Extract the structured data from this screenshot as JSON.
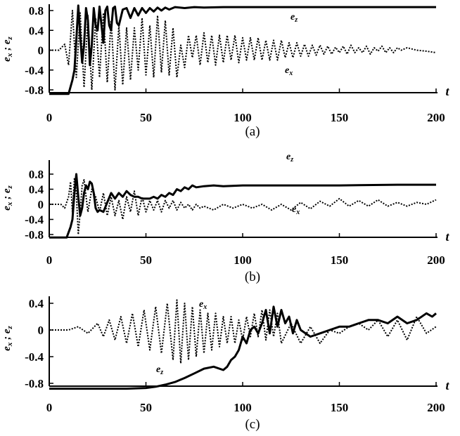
{
  "colors": {
    "ink": "#000000",
    "background": "#ffffff"
  },
  "chart_data": [
    {
      "type": "line",
      "caption": "(a)",
      "xlabel": "t",
      "ylabel": "e_x ; e_z",
      "xlim": [
        0,
        200
      ],
      "ylim": [
        -0.9,
        0.9
      ],
      "xticks": [
        "0",
        "50",
        "100",
        "150",
        "200"
      ],
      "yticks": [
        "0.8",
        "0.4",
        "0",
        "-0.4",
        "-0.8"
      ],
      "series": [
        {
          "name": "e_z",
          "style": "solid",
          "label": {
            "main": "e",
            "sub": "z"
          },
          "x": [
            0,
            10,
            12,
            13,
            14,
            15,
            16,
            17,
            18,
            19,
            20,
            21,
            22,
            23,
            24,
            25,
            26,
            27,
            28,
            29,
            30,
            31,
            32,
            33,
            34,
            35,
            36,
            38,
            40,
            42,
            44,
            46,
            48,
            50,
            52,
            54,
            56,
            58,
            60,
            62,
            65,
            70,
            75,
            80,
            90,
            100,
            120,
            150,
            200
          ],
          "y": [
            -0.88,
            -0.88,
            -0.6,
            -0.4,
            0.2,
            0.9,
            0.3,
            -0.25,
            0.1,
            0.85,
            0.6,
            -0.3,
            0.1,
            0.85,
            0.5,
            0.4,
            0.88,
            0.5,
            0.15,
            0.8,
            0.88,
            0.5,
            0.4,
            0.85,
            0.88,
            0.55,
            0.5,
            0.82,
            0.85,
            0.65,
            0.85,
            0.7,
            0.85,
            0.75,
            0.85,
            0.78,
            0.86,
            0.8,
            0.86,
            0.82,
            0.87,
            0.85,
            0.87,
            0.86,
            0.87,
            0.87,
            0.87,
            0.87,
            0.87
          ]
        },
        {
          "name": "e_x",
          "style": "dotted",
          "label": {
            "main": "e",
            "sub": "x"
          },
          "x": [
            0,
            5,
            8,
            10,
            12,
            14,
            16,
            18,
            20,
            22,
            24,
            26,
            28,
            30,
            32,
            34,
            36,
            38,
            40,
            42,
            44,
            46,
            48,
            50,
            52,
            54,
            56,
            58,
            60,
            62,
            64,
            66,
            68,
            70,
            72,
            74,
            76,
            78,
            80,
            82,
            84,
            86,
            88,
            90,
            92,
            94,
            96,
            98,
            100,
            102,
            104,
            106,
            108,
            110,
            112,
            114,
            116,
            118,
            120,
            122,
            124,
            126,
            128,
            130,
            132,
            134,
            136,
            138,
            140,
            142,
            144,
            146,
            148,
            150,
            152,
            154,
            156,
            158,
            160,
            162,
            164,
            166,
            168,
            170,
            172,
            174,
            176,
            178,
            180,
            182,
            185,
            190,
            195,
            200
          ],
          "y": [
            0,
            0,
            0.12,
            -0.3,
            0.8,
            -0.55,
            0.75,
            -0.75,
            0.7,
            -0.8,
            0.65,
            -0.55,
            0.75,
            -0.65,
            0.6,
            -0.8,
            0.5,
            -0.7,
            0.45,
            -0.6,
            0.45,
            -0.4,
            0.65,
            -0.5,
            0.5,
            -0.55,
            0.7,
            -0.45,
            0.6,
            -0.5,
            0.45,
            -0.55,
            0.1,
            -0.35,
            0.3,
            -0.15,
            0.3,
            -0.3,
            0.35,
            -0.25,
            0.3,
            -0.3,
            0.3,
            -0.25,
            0.3,
            -0.2,
            0.3,
            -0.25,
            0.25,
            -0.2,
            0.25,
            -0.2,
            0.25,
            -0.2,
            0.2,
            -0.2,
            0.2,
            -0.2,
            0.2,
            -0.15,
            0.15,
            -0.15,
            0.15,
            -0.12,
            0.12,
            -0.12,
            0.1,
            -0.1,
            0.1,
            -0.08,
            0.08,
            -0.08,
            0.06,
            -0.05,
            0.08,
            -0.08,
            0.1,
            -0.05,
            0.05,
            -0.05,
            0.08,
            -0.08,
            0.05,
            -0.02,
            0.08,
            -0.05,
            0.05,
            -0.05,
            0.05,
            0,
            0.05,
            0,
            -0.02,
            -0.05
          ]
        }
      ]
    },
    {
      "type": "line",
      "caption": "(b)",
      "xlabel": "t",
      "ylabel": "e_x ; e_z",
      "xlim": [
        0,
        200
      ],
      "ylim": [
        -0.9,
        0.9
      ],
      "xticks": [
        "0",
        "50",
        "100",
        "150",
        "200"
      ],
      "yticks": [
        "0.8",
        "0.4",
        "0",
        "-0.4",
        "-0.8"
      ],
      "series": [
        {
          "name": "e_z",
          "style": "solid",
          "label": {
            "main": "e",
            "sub": "z"
          },
          "x": [
            0,
            9,
            11,
            12,
            13,
            14,
            15,
            16,
            17,
            18,
            19,
            20,
            21,
            22,
            23,
            24,
            25,
            26,
            28,
            30,
            32,
            34,
            36,
            38,
            40,
            42,
            44,
            46,
            48,
            50,
            52,
            54,
            56,
            58,
            60,
            62,
            64,
            66,
            68,
            70,
            72,
            74,
            76,
            80,
            85,
            90,
            100,
            120,
            150,
            180,
            200
          ],
          "y": [
            -0.88,
            -0.88,
            -0.6,
            -0.4,
            0.3,
            0.8,
            0.2,
            -0.3,
            -0.1,
            0.3,
            0.5,
            0.4,
            0.6,
            0.55,
            0.3,
            -0.1,
            -0.2,
            -0.15,
            -0.2,
            0.05,
            0.3,
            0.15,
            0.3,
            0.2,
            0.35,
            0.25,
            0.2,
            0.2,
            0.15,
            0.15,
            0.15,
            0.2,
            0.15,
            0.25,
            0.2,
            0.3,
            0.25,
            0.4,
            0.35,
            0.45,
            0.4,
            0.5,
            0.45,
            0.48,
            0.5,
            0.48,
            0.5,
            0.5,
            0.5,
            0.52,
            0.52
          ]
        },
        {
          "name": "e_x",
          "style": "dotted",
          "label": {
            "main": "e",
            "sub": "x"
          },
          "x": [
            0,
            6,
            8,
            10,
            11,
            12,
            13,
            14,
            15,
            16,
            17,
            18,
            20,
            22,
            24,
            26,
            28,
            30,
            32,
            34,
            36,
            38,
            40,
            42,
            44,
            46,
            48,
            50,
            52,
            54,
            56,
            58,
            60,
            62,
            64,
            66,
            68,
            70,
            72,
            74,
            76,
            78,
            80,
            85,
            90,
            95,
            100,
            105,
            110,
            115,
            120,
            125,
            130,
            135,
            140,
            145,
            150,
            155,
            160,
            165,
            170,
            175,
            180,
            185,
            190,
            195,
            200
          ],
          "y": [
            0,
            0,
            -0.1,
            0.2,
            0.6,
            -0.2,
            0.7,
            0.3,
            -0.8,
            -0.2,
            0.5,
            0.65,
            -0.2,
            0.4,
            0.2,
            -0.2,
            0.3,
            -0.3,
            0.2,
            -0.3,
            0.1,
            -0.4,
            0.2,
            -0.2,
            0.35,
            -0.3,
            0.2,
            -0.2,
            0.1,
            -0.15,
            0.1,
            -0.2,
            0.1,
            -0.1,
            0.1,
            -0.15,
            0.05,
            -0.1,
            0,
            -0.15,
            0,
            -0.1,
            -0.05,
            -0.15,
            0,
            -0.1,
            0,
            -0.1,
            0,
            -0.15,
            0,
            -0.15,
            0.05,
            -0.12,
            0.08,
            -0.05,
            0.15,
            -0.05,
            0.1,
            -0.05,
            0.12,
            -0.05,
            0.05,
            -0.05,
            0.05,
            0,
            0.12
          ]
        }
      ]
    },
    {
      "type": "line",
      "caption": "(c)",
      "xlabel": "t",
      "ylabel": "e_x ; e_z",
      "xlim": [
        0,
        200
      ],
      "ylim": [
        -0.9,
        0.45
      ],
      "xticks": [
        "0",
        "50",
        "100",
        "150",
        "200"
      ],
      "yticks": [
        "0.4",
        "0",
        "-0.4",
        "-0.8"
      ],
      "series": [
        {
          "name": "e_z",
          "style": "solid",
          "label": {
            "main": "e",
            "sub": "z"
          },
          "x": [
            0,
            40,
            50,
            55,
            60,
            65,
            70,
            75,
            80,
            85,
            90,
            92,
            94,
            96,
            98,
            100,
            102,
            104,
            106,
            108,
            110,
            112,
            114,
            116,
            118,
            120,
            122,
            124,
            126,
            128,
            130,
            135,
            140,
            145,
            150,
            155,
            160,
            165,
            170,
            175,
            180,
            185,
            190,
            195,
            198,
            200
          ],
          "y": [
            -0.88,
            -0.88,
            -0.87,
            -0.85,
            -0.82,
            -0.78,
            -0.72,
            -0.65,
            -0.58,
            -0.55,
            -0.6,
            -0.55,
            -0.45,
            -0.4,
            -0.3,
            -0.1,
            -0.2,
            0,
            0.05,
            -0.05,
            0.1,
            0.3,
            -0.05,
            0.35,
            0.05,
            0.3,
            0.1,
            0.2,
            -0.05,
            0.15,
            0,
            -0.1,
            -0.05,
            0,
            0.05,
            0.05,
            0.1,
            0.15,
            0.15,
            0.1,
            0.2,
            0.1,
            0.15,
            0.25,
            0.2,
            0.25
          ]
        },
        {
          "name": "e_x",
          "style": "dotted",
          "label": {
            "main": "e",
            "sub": "x"
          },
          "x": [
            0,
            10,
            15,
            20,
            25,
            28,
            31,
            34,
            37,
            40,
            43,
            46,
            49,
            52,
            55,
            58,
            61,
            64,
            66,
            68,
            70,
            72,
            74,
            76,
            78,
            80,
            82,
            84,
            86,
            88,
            90,
            92,
            94,
            96,
            98,
            100,
            102,
            104,
            106,
            108,
            110,
            112,
            114,
            116,
            118,
            120,
            125,
            130,
            135,
            140,
            145,
            150,
            155,
            160,
            165,
            170,
            175,
            180,
            185,
            190,
            195,
            200
          ],
          "y": [
            0,
            0,
            0.05,
            -0.05,
            0.1,
            -0.1,
            0.15,
            -0.15,
            0.2,
            -0.2,
            0.25,
            -0.25,
            0.3,
            -0.3,
            0.35,
            -0.35,
            0.4,
            -0.45,
            0.45,
            -0.5,
            0.4,
            -0.45,
            0.35,
            -0.4,
            0.3,
            -0.35,
            0.25,
            -0.3,
            0.25,
            -0.25,
            0.2,
            -0.2,
            0.2,
            -0.2,
            0.15,
            -0.15,
            0.2,
            -0.1,
            0.25,
            -0.1,
            0.3,
            -0.15,
            0.3,
            -0.1,
            0.25,
            -0.2,
            0.1,
            -0.2,
            0.05,
            -0.2,
            0,
            -0.05,
            0.05,
            0.1,
            0,
            0.15,
            -0.1,
            0.15,
            -0.15,
            0.2,
            -0.05,
            0.05
          ]
        }
      ]
    }
  ]
}
